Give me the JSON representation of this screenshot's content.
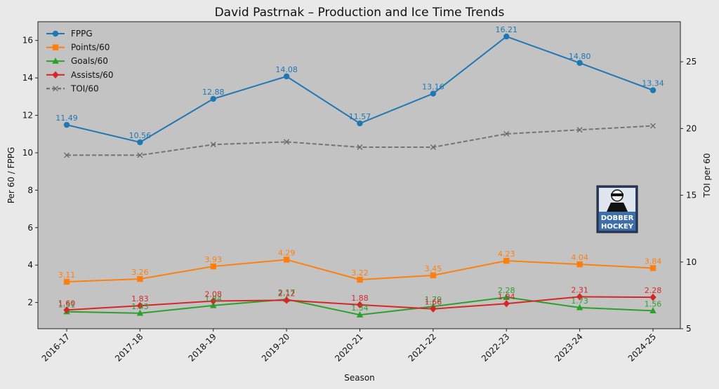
{
  "chart_data": {
    "type": "line",
    "title": "David Pastrnak – Production and Ice Time Trends",
    "xlabel": "Season",
    "ylabel": "Per 60 / FPPG",
    "y2label": "TOI per 60",
    "categories": [
      "2016-17",
      "2017-18",
      "2018-19",
      "2019-20",
      "2020-21",
      "2021-22",
      "2022-23",
      "2023-24",
      "2024-25"
    ],
    "ylim": [
      0.6,
      17
    ],
    "y2lim": [
      5,
      28
    ],
    "yticks": [
      2,
      4,
      6,
      8,
      10,
      12,
      14,
      16
    ],
    "y2ticks": [
      5,
      10,
      15,
      20,
      25
    ],
    "grid": false,
    "legend_position": "top-left",
    "series": [
      {
        "name": "FPPG",
        "color": "#1f77b4",
        "marker": "circle",
        "dashed": false,
        "axis": "left",
        "labels": true,
        "values": [
          11.49,
          10.56,
          12.88,
          14.08,
          11.57,
          13.16,
          16.21,
          14.8,
          13.34
        ]
      },
      {
        "name": "Points/60",
        "color": "#ff7f0e",
        "marker": "square",
        "dashed": false,
        "axis": "left",
        "labels": true,
        "values": [
          3.11,
          3.26,
          3.93,
          4.29,
          3.22,
          3.45,
          4.23,
          4.04,
          3.84
        ]
      },
      {
        "name": "Goals/60",
        "color": "#2ca02c",
        "marker": "triangle",
        "dashed": false,
        "axis": "left",
        "labels": true,
        "values": [
          1.51,
          1.43,
          1.84,
          2.17,
          1.34,
          1.79,
          2.28,
          1.73,
          1.56
        ]
      },
      {
        "name": "Assists/60",
        "color": "#d62728",
        "marker": "diamond",
        "dashed": false,
        "axis": "left",
        "labels": true,
        "values": [
          1.6,
          1.83,
          2.08,
          2.12,
          1.88,
          1.66,
          1.94,
          2.31,
          2.28
        ]
      },
      {
        "name": "TOI/60",
        "color": "#666666",
        "marker": "x",
        "dashed": true,
        "axis": "right",
        "labels": false,
        "values": [
          18.0,
          18.0,
          18.8,
          19.0,
          18.6,
          18.6,
          19.6,
          19.9,
          20.2
        ]
      }
    ]
  },
  "logo": {
    "line1": "DOBBER",
    "line2": "HOCKEY"
  }
}
